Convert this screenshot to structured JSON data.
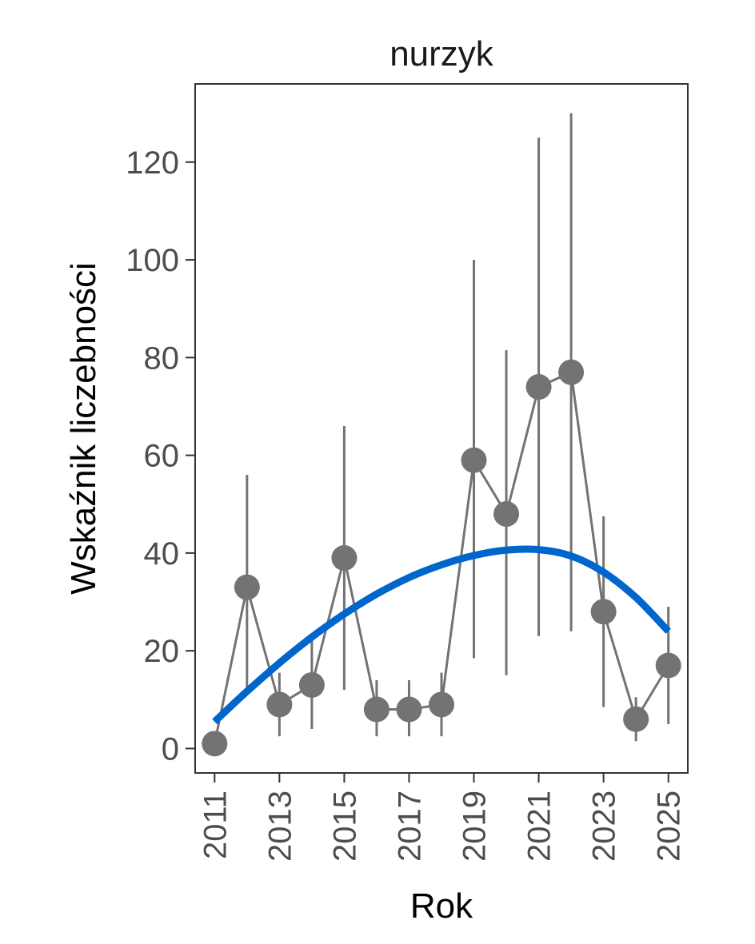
{
  "chart_data": {
    "type": "line",
    "title": "nurzyk",
    "xlabel": "Rok",
    "ylabel": "Wskaźnik liczebności",
    "xlim": [
      2010.4,
      2025.6
    ],
    "ylim": [
      -5,
      136
    ],
    "x_ticks": [
      2011,
      2013,
      2015,
      2017,
      2019,
      2021,
      2023,
      2025
    ],
    "y_ticks": [
      0,
      20,
      40,
      60,
      80,
      100,
      120
    ],
    "grid": false,
    "series": [
      {
        "x": [
          2011,
          2012,
          2013,
          2014,
          2015,
          2016,
          2017,
          2018,
          2019,
          2020,
          2021,
          2022,
          2023,
          2024,
          2025
        ],
        "y": [
          1,
          33,
          9,
          13,
          39,
          8,
          8,
          9,
          59,
          48,
          74,
          77,
          28,
          6,
          17
        ],
        "lower": [
          1,
          11,
          2.5,
          4,
          12,
          2.5,
          2.5,
          2.5,
          18.5,
          15,
          23,
          24,
          8.5,
          1.5,
          5
        ],
        "upper": [
          1,
          56,
          15.5,
          22.5,
          66,
          14,
          14,
          15.5,
          100,
          81.5,
          125,
          130,
          47.5,
          10.5,
          29
        ],
        "color": "#737373"
      }
    ],
    "trend": {
      "x": [
        2011,
        2012,
        2013,
        2014,
        2015,
        2016,
        2017,
        2018,
        2019,
        2020,
        2021,
        2022,
        2023,
        2024,
        2025
      ],
      "y": [
        5.5,
        11.7,
        17.5,
        22.8,
        27.5,
        31.6,
        35,
        37.6,
        39.5,
        40.6,
        40.7,
        39.4,
        36.1,
        30.9,
        24
      ],
      "color": "#0066cc"
    }
  }
}
